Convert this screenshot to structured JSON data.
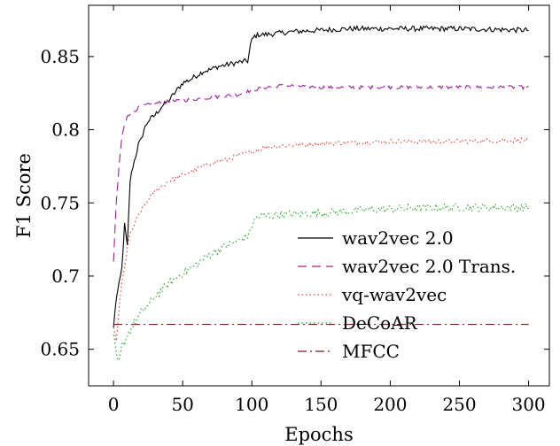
{
  "chart_data": {
    "type": "line",
    "title": "",
    "xlabel": "Epochs",
    "ylabel": "F1 Score",
    "xlim": [
      -18,
      315
    ],
    "ylim": [
      0.625,
      0.885
    ],
    "xticks": [
      0,
      50,
      100,
      150,
      200,
      250,
      300
    ],
    "yticks": [
      0.65,
      0.7,
      0.75,
      0.8,
      0.85
    ],
    "ytick_labels": [
      "0.65",
      "0.7",
      "0.75",
      "0.8",
      "0.85"
    ],
    "grid": false,
    "legend_position": "lower-right inside plot",
    "series": [
      {
        "name": "wav2vec 2.0",
        "color": "#000000",
        "dash": "solid",
        "noise": 0.0018,
        "points": [
          [
            0,
            0.665
          ],
          [
            2,
            0.685
          ],
          [
            4,
            0.694
          ],
          [
            6,
            0.705
          ],
          [
            8,
            0.735
          ],
          [
            10,
            0.72
          ],
          [
            12,
            0.765
          ],
          [
            14,
            0.775
          ],
          [
            16,
            0.782
          ],
          [
            18,
            0.79
          ],
          [
            20,
            0.793
          ],
          [
            22,
            0.8
          ],
          [
            25,
            0.806
          ],
          [
            30,
            0.81
          ],
          [
            35,
            0.816
          ],
          [
            40,
            0.82
          ],
          [
            45,
            0.826
          ],
          [
            50,
            0.832
          ],
          [
            55,
            0.834
          ],
          [
            60,
            0.837
          ],
          [
            65,
            0.84
          ],
          [
            70,
            0.841
          ],
          [
            75,
            0.843
          ],
          [
            80,
            0.844
          ],
          [
            85,
            0.845
          ],
          [
            90,
            0.846
          ],
          [
            97,
            0.847
          ],
          [
            98,
            0.852
          ],
          [
            99,
            0.858
          ],
          [
            100,
            0.861
          ],
          [
            102,
            0.864
          ],
          [
            105,
            0.865
          ],
          [
            110,
            0.865
          ],
          [
            120,
            0.866
          ],
          [
            130,
            0.867
          ],
          [
            150,
            0.868
          ],
          [
            170,
            0.869
          ],
          [
            200,
            0.869
          ],
          [
            250,
            0.869
          ],
          [
            300,
            0.868
          ]
        ]
      },
      {
        "name": "wav2vec 2.0 Trans.",
        "color": "#a020a0",
        "dash": "10 6",
        "noise": 0.0012,
        "points": [
          [
            0,
            0.71
          ],
          [
            2,
            0.75
          ],
          [
            4,
            0.775
          ],
          [
            6,
            0.795
          ],
          [
            8,
            0.803
          ],
          [
            10,
            0.81
          ],
          [
            15,
            0.813
          ],
          [
            20,
            0.816
          ],
          [
            30,
            0.818
          ],
          [
            40,
            0.819
          ],
          [
            50,
            0.82
          ],
          [
            60,
            0.821
          ],
          [
            70,
            0.822
          ],
          [
            80,
            0.823
          ],
          [
            90,
            0.824
          ],
          [
            100,
            0.827
          ],
          [
            110,
            0.829
          ],
          [
            120,
            0.83
          ],
          [
            130,
            0.83
          ],
          [
            150,
            0.829
          ],
          [
            200,
            0.829
          ],
          [
            250,
            0.829
          ],
          [
            300,
            0.829
          ]
        ]
      },
      {
        "name": "vq-wav2vec",
        "color": "#e8392a",
        "dash": "1.5 3",
        "noise": 0.0016,
        "points": [
          [
            0,
            0.665
          ],
          [
            2,
            0.655
          ],
          [
            4,
            0.678
          ],
          [
            6,
            0.695
          ],
          [
            8,
            0.705
          ],
          [
            10,
            0.72
          ],
          [
            12,
            0.728
          ],
          [
            15,
            0.735
          ],
          [
            20,
            0.745
          ],
          [
            25,
            0.752
          ],
          [
            30,
            0.758
          ],
          [
            40,
            0.765
          ],
          [
            50,
            0.769
          ],
          [
            60,
            0.773
          ],
          [
            70,
            0.777
          ],
          [
            80,
            0.779
          ],
          [
            90,
            0.782
          ],
          [
            100,
            0.785
          ],
          [
            110,
            0.788
          ],
          [
            120,
            0.789
          ],
          [
            140,
            0.79
          ],
          [
            160,
            0.791
          ],
          [
            200,
            0.792
          ],
          [
            250,
            0.792
          ],
          [
            300,
            0.793
          ]
        ]
      },
      {
        "name": "DeCoAR",
        "color": "#22aa22",
        "dash": "1.5 3",
        "noise": 0.0028,
        "points": [
          [
            0,
            0.66
          ],
          [
            2,
            0.645
          ],
          [
            4,
            0.64
          ],
          [
            6,
            0.652
          ],
          [
            8,
            0.655
          ],
          [
            10,
            0.66
          ],
          [
            15,
            0.668
          ],
          [
            20,
            0.675
          ],
          [
            25,
            0.68
          ],
          [
            30,
            0.686
          ],
          [
            40,
            0.695
          ],
          [
            50,
            0.702
          ],
          [
            60,
            0.708
          ],
          [
            70,
            0.715
          ],
          [
            80,
            0.72
          ],
          [
            90,
            0.724
          ],
          [
            98,
            0.728
          ],
          [
            100,
            0.735
          ],
          [
            103,
            0.74
          ],
          [
            110,
            0.741
          ],
          [
            120,
            0.742
          ],
          [
            150,
            0.743
          ],
          [
            180,
            0.745
          ],
          [
            200,
            0.746
          ],
          [
            250,
            0.747
          ],
          [
            300,
            0.747
          ]
        ]
      },
      {
        "name": "MFCC",
        "color": "#7a1f1f",
        "dash": "10 4 2 4",
        "noise": 0,
        "points": [
          [
            0,
            0.667
          ],
          [
            300,
            0.667
          ]
        ]
      }
    ]
  }
}
